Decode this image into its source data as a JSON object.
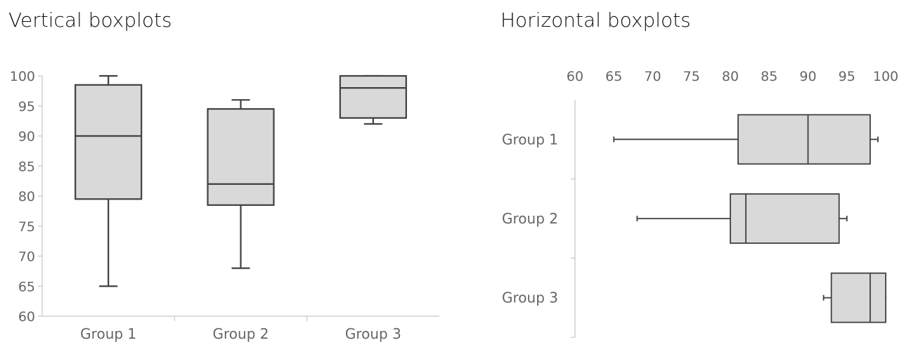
{
  "colors": {
    "box_fill": "#d9d9d9",
    "box_stroke": "#404040",
    "text": "#666666"
  },
  "chart_data": [
    {
      "type": "boxplot",
      "orientation": "vertical",
      "title": "Vertical boxplots",
      "categories": [
        "Group 1",
        "Group 2",
        "Group 3"
      ],
      "ylim": [
        60,
        100
      ],
      "yticks": [
        "60",
        "65",
        "70",
        "75",
        "80",
        "85",
        "90",
        "95",
        "100"
      ],
      "boxes": [
        {
          "min": 65,
          "q1": 79.5,
          "median": 90,
          "q3": 98.5,
          "max": 100
        },
        {
          "min": 68,
          "q1": 78.5,
          "median": 82,
          "q3": 94.5,
          "max": 96
        },
        {
          "min": 92,
          "q1": 93,
          "median": 98,
          "q3": 100,
          "max": 100
        }
      ],
      "grid": false
    },
    {
      "type": "boxplot",
      "orientation": "horizontal",
      "title": "Horizontal boxplots",
      "categories": [
        "Group 1",
        "Group 2",
        "Group 3"
      ],
      "xlim": [
        60,
        100
      ],
      "xticks": [
        "60",
        "65",
        "70",
        "75",
        "80",
        "85",
        "90",
        "95",
        "100"
      ],
      "boxes": [
        {
          "min": 65,
          "q1": 81,
          "median": 90,
          "q3": 98,
          "max": 99
        },
        {
          "min": 68,
          "q1": 80,
          "median": 82,
          "q3": 94,
          "max": 95
        },
        {
          "min": 92,
          "q1": 93,
          "median": 98,
          "q3": 100,
          "max": 100
        }
      ],
      "grid": false
    }
  ]
}
